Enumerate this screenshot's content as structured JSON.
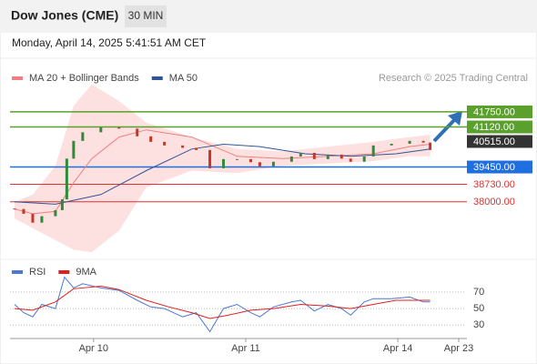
{
  "header": {
    "title": "Dow Jones (CME)",
    "interval": "30 MIN",
    "timestamp": "Monday, April 14, 2025 5:41:51 AM CET"
  },
  "credit": "Research © 2025 Trading Central",
  "chart_data": [
    {
      "type": "candlestick",
      "xlim": [
        0,
        100
      ],
      "ylim": [
        35600,
        42620
      ],
      "xticks": [
        {
          "value": 18.4,
          "label": "Apr 10"
        },
        {
          "value": 51.9,
          "label": "Apr 11"
        },
        {
          "value": 85.4,
          "label": "Apr 14"
        },
        {
          "value": 98.8,
          "label": "Apr 23"
        }
      ],
      "price": {
        "up_color": "#2e8b3a",
        "down_color": "#c0392b",
        "x": [
          1,
          3,
          5,
          7,
          10,
          11.5,
          12.5,
          14,
          16,
          20,
          24,
          28,
          31,
          34,
          38,
          41,
          44,
          47,
          50,
          53,
          55,
          58,
          62,
          64,
          67,
          70,
          73,
          75,
          78,
          80,
          84,
          88,
          91,
          92.5
        ],
        "values": [
          37700,
          37500,
          37130,
          37400,
          37650,
          38100,
          39800,
          40540,
          40900,
          41100,
          41050,
          40730,
          40500,
          40350,
          40250,
          40160,
          39400,
          39780,
          39780,
          39650,
          39480,
          39670,
          39890,
          40040,
          39780,
          39970,
          39800,
          39670,
          39890,
          40350,
          40420,
          40540,
          40470,
          40160
        ]
      },
      "series": [
        {
          "name": "MA 20 + Bollinger Bands",
          "color": "#f08080",
          "band_color": "#fde0e0",
          "x": [
            1,
            5,
            10,
            14,
            18,
            24,
            30,
            40,
            50,
            60,
            70,
            80,
            88,
            92.5
          ],
          "values": [
            37700,
            37500,
            37600,
            38800,
            39800,
            40700,
            41000,
            40700,
            39900,
            39800,
            39900,
            40000,
            40300,
            40400
          ],
          "upper": [
            38000,
            38300,
            39500,
            42000,
            42900,
            42200,
            41300,
            40700,
            40200,
            40100,
            40300,
            40500,
            40700,
            40800
          ],
          "lower": [
            37300,
            36900,
            36400,
            36000,
            35900,
            36800,
            38600,
            39300,
            39200,
            39500,
            39600,
            39700,
            39900,
            39900
          ]
        },
        {
          "name": "MA 50",
          "color": "#2f5597",
          "x": [
            1,
            10,
            20,
            30,
            40,
            47,
            55,
            65,
            75,
            85,
            92.5
          ],
          "values": [
            38000,
            37900,
            38300,
            39300,
            40200,
            40400,
            40300,
            40000,
            39900,
            40000,
            40200
          ]
        }
      ],
      "levels": [
        {
          "value": 41750,
          "label": "41750.00",
          "color": "#5aa02c",
          "style": "box",
          "line": true
        },
        {
          "value": 41120,
          "label": "41120.00",
          "color": "#5aa02c",
          "style": "box",
          "line": true
        },
        {
          "value": 40515,
          "label": "40515.00",
          "color": "#333333",
          "style": "box",
          "line": false
        },
        {
          "value": 39450,
          "label": "39450.00",
          "color": "#1f6fe0",
          "style": "box",
          "line": true
        },
        {
          "value": 38730,
          "label": "38730.00",
          "color": "#e03030",
          "style": "text",
          "line": true
        },
        {
          "value": 38000,
          "label": "38000.00",
          "color": "#e03030",
          "style": "text",
          "line": true
        }
      ]
    },
    {
      "type": "line",
      "xlim": [
        0,
        100
      ],
      "ylim": [
        16,
        93
      ],
      "yticks": [
        70,
        50,
        30
      ],
      "grid": true,
      "series": [
        {
          "name": "RSI",
          "color": "#4a78d4",
          "x": [
            1,
            3,
            5,
            7,
            10,
            12,
            14,
            16,
            20,
            24,
            28,
            31,
            34,
            38,
            41,
            44,
            47,
            50,
            53,
            55,
            58,
            62,
            64,
            67,
            70,
            73,
            75,
            78,
            80,
            84,
            88,
            91,
            92.5
          ],
          "values": [
            55,
            45,
            40,
            55,
            50,
            88,
            75,
            80,
            75,
            72,
            60,
            52,
            50,
            40,
            45,
            22,
            50,
            55,
            45,
            40,
            52,
            58,
            60,
            47,
            55,
            50,
            42,
            58,
            62,
            62,
            64,
            58,
            58
          ]
        },
        {
          "name": "9MA",
          "color": "#e02020",
          "x": [
            1,
            5,
            10,
            14,
            20,
            24,
            30,
            35,
            40,
            44,
            48,
            53,
            58,
            64,
            70,
            75,
            80,
            85,
            92.5
          ],
          "values": [
            50,
            48,
            58,
            74,
            77,
            73,
            60,
            52,
            45,
            38,
            42,
            48,
            50,
            55,
            53,
            50,
            55,
            60,
            60
          ]
        }
      ]
    }
  ]
}
